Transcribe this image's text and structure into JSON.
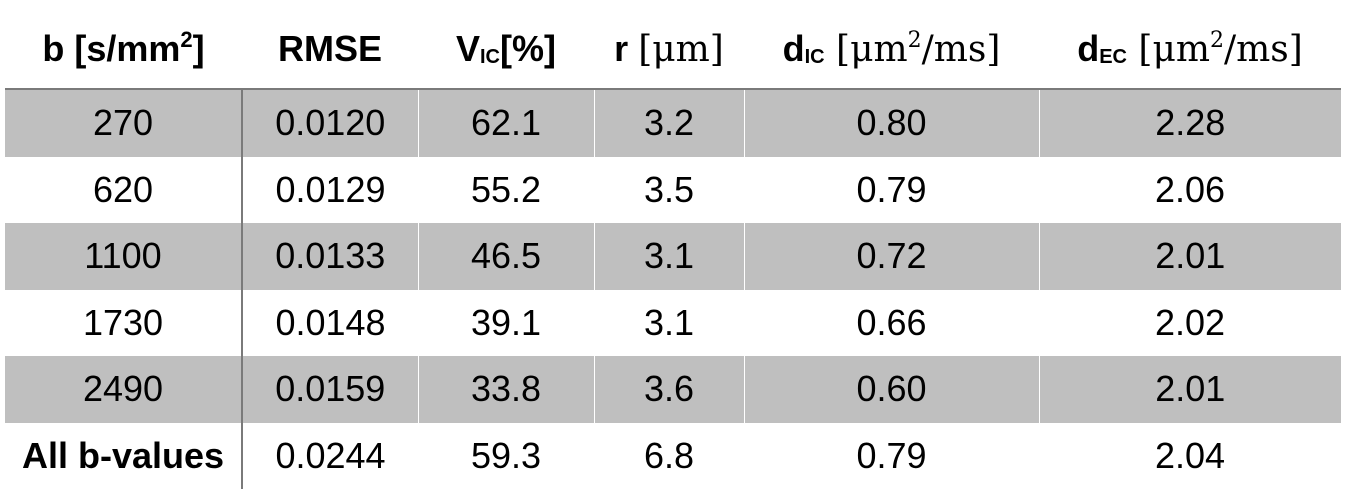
{
  "table": {
    "headers": [
      {
        "main": "b ",
        "sub": "",
        "unit": "[s/mm",
        "sup": "2",
        "unit_end": "]"
      },
      {
        "main": "RMSE",
        "sub": "",
        "unit": "",
        "sup": "",
        "unit_end": ""
      },
      {
        "main": "V",
        "sub": "IC",
        "unit": "[%]",
        "sup": "",
        "unit_end": ""
      },
      {
        "main": "r ",
        "sub": "",
        "unit": "[μm]",
        "sup": "",
        "unit_end": ""
      },
      {
        "main": "d",
        "sub": "IC",
        "unit": " [μm",
        "sup": "2",
        "unit_end": "/ms]"
      },
      {
        "main": "d",
        "sub": "EC",
        "unit": " [μm",
        "sup": "2",
        "unit_end": "/ms]"
      }
    ],
    "rows": [
      {
        "cells": [
          "270",
          "0.0120",
          "62.1",
          "3.2",
          "0.80",
          "2.28"
        ]
      },
      {
        "cells": [
          "620",
          "0.0129",
          "55.2",
          "3.5",
          "0.79",
          "2.06"
        ]
      },
      {
        "cells": [
          "1100",
          "0.0133",
          "46.5",
          "3.1",
          "0.72",
          "2.01"
        ]
      },
      {
        "cells": [
          "1730",
          "0.0148",
          "39.1",
          "3.1",
          "0.66",
          "2.02"
        ]
      },
      {
        "cells": [
          "2490",
          "0.0159",
          "33.8",
          "3.6",
          "0.60",
          "2.01"
        ]
      },
      {
        "cells": [
          "All b-values",
          "0.0244",
          "59.3",
          "6.8",
          "0.79",
          "2.04"
        ]
      }
    ]
  }
}
